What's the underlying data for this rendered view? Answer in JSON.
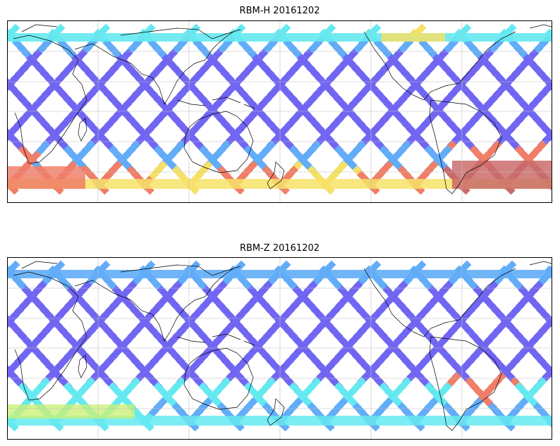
{
  "panels": [
    {
      "title": "RBM-H 20161202"
    },
    {
      "title": "RBM-Z 20161202"
    }
  ],
  "colors": {
    "low": "#6a5ef2",
    "mid_low": "#5aa8f8",
    "mid": "#5de8f0",
    "mid_high": "#c8f070",
    "high": "#f6e060",
    "very_high": "#f07860",
    "max": "#c86464"
  }
}
